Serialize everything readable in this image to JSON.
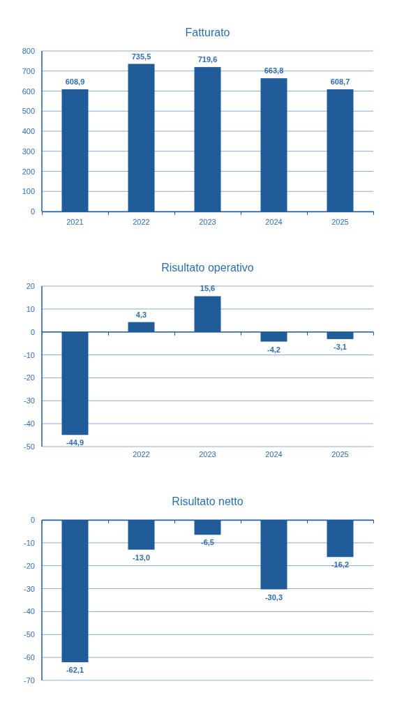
{
  "chart_data": [
    {
      "type": "bar",
      "title": "Fatturato",
      "categories": [
        "2021",
        "2022",
        "2023",
        "2024",
        "2025"
      ],
      "values": [
        608.9,
        735.5,
        719.6,
        663.8,
        608.7
      ],
      "value_labels": [
        "608,9",
        "735,5",
        "719,6",
        "663,8",
        "608,7"
      ],
      "color": "#1f5c99",
      "ylim": [
        0,
        800
      ],
      "yticks": [
        0,
        100,
        200,
        300,
        400,
        500,
        600,
        700,
        800
      ],
      "grid": "y"
    },
    {
      "type": "bar",
      "title": "Risultato operativo",
      "categories": [
        null,
        "2022",
        "2023",
        "2024",
        "2025"
      ],
      "values": [
        -44.9,
        4.3,
        15.6,
        -4.2,
        -3.1
      ],
      "value_labels": [
        "-44,9",
        "4,3",
        "15,6",
        "-4,2",
        "-3,1"
      ],
      "color": "#1f5c99",
      "ref_lines": [
        {
          "axis": "y",
          "value": 0,
          "color": "#1f5c99"
        }
      ],
      "ylim": [
        -50,
        20
      ],
      "yticks": [
        -50,
        -40,
        -30,
        -20,
        -10,
        0,
        10,
        20
      ],
      "grid": "y"
    },
    {
      "type": "bar",
      "title": "Risultato netto",
      "categories": [
        null,
        null,
        null,
        null,
        null
      ],
      "values": [
        -62.1,
        -13.0,
        -6.5,
        -30.3,
        -16.2
      ],
      "value_labels": [
        "-62,1",
        "-13,0",
        "-6,5",
        "-30,3",
        "-16,2"
      ],
      "color": "#1f5c99",
      "ylim": [
        -70,
        0
      ],
      "yticks": [
        -70,
        -60,
        -50,
        -40,
        -30,
        -20,
        -10,
        0
      ],
      "grid": "y"
    }
  ]
}
